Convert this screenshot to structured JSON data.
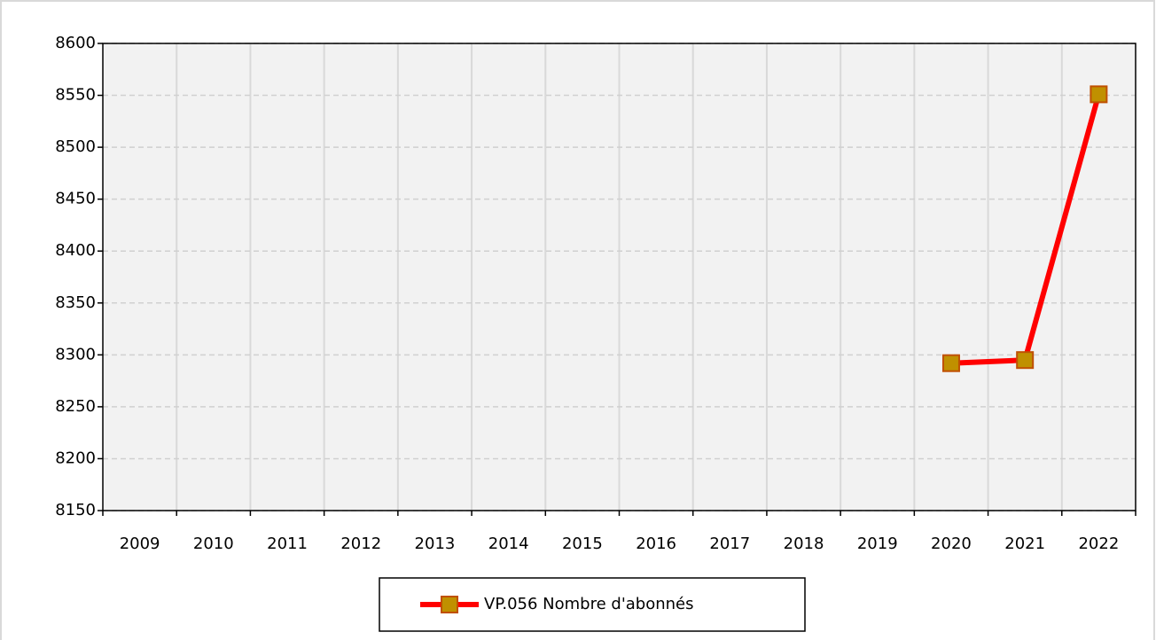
{
  "chart_data": {
    "type": "line",
    "categories": [
      "2009",
      "2010",
      "2011",
      "2012",
      "2013",
      "2014",
      "2015",
      "2016",
      "2017",
      "2018",
      "2019",
      "2020",
      "2021",
      "2022"
    ],
    "series": [
      {
        "name": "VP.056 Nombre d'abonnés",
        "color": "#ff0000",
        "marker_color": "#c09000",
        "values": [
          null,
          null,
          null,
          null,
          null,
          null,
          null,
          null,
          null,
          null,
          null,
          8292,
          8295,
          8551
        ]
      }
    ],
    "ylim": [
      8150,
      8600
    ],
    "yticks": [
      8150,
      8200,
      8250,
      8300,
      8350,
      8400,
      8450,
      8500,
      8550,
      8600
    ],
    "grid": true,
    "legend": "bottom"
  }
}
